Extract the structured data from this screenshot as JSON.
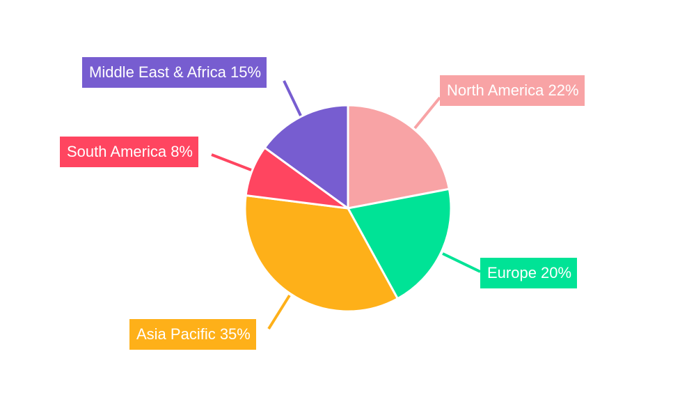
{
  "chart_data": {
    "type": "pie",
    "categories": [
      "North America",
      "Europe",
      "Asia Pacific",
      "South America",
      "Middle East & Africa"
    ],
    "values": [
      22,
      20,
      35,
      8,
      15
    ],
    "labels": [
      "North America 22%",
      "Europe 20%",
      "Asia Pacific 35%",
      "South America 8%",
      "Middle East & Africa 15%"
    ],
    "colors": [
      "#f8a3a5",
      "#00e396",
      "#feb019",
      "#ff4560",
      "#775dd0"
    ],
    "start_angle": "top, clockwise",
    "legend": "none"
  }
}
